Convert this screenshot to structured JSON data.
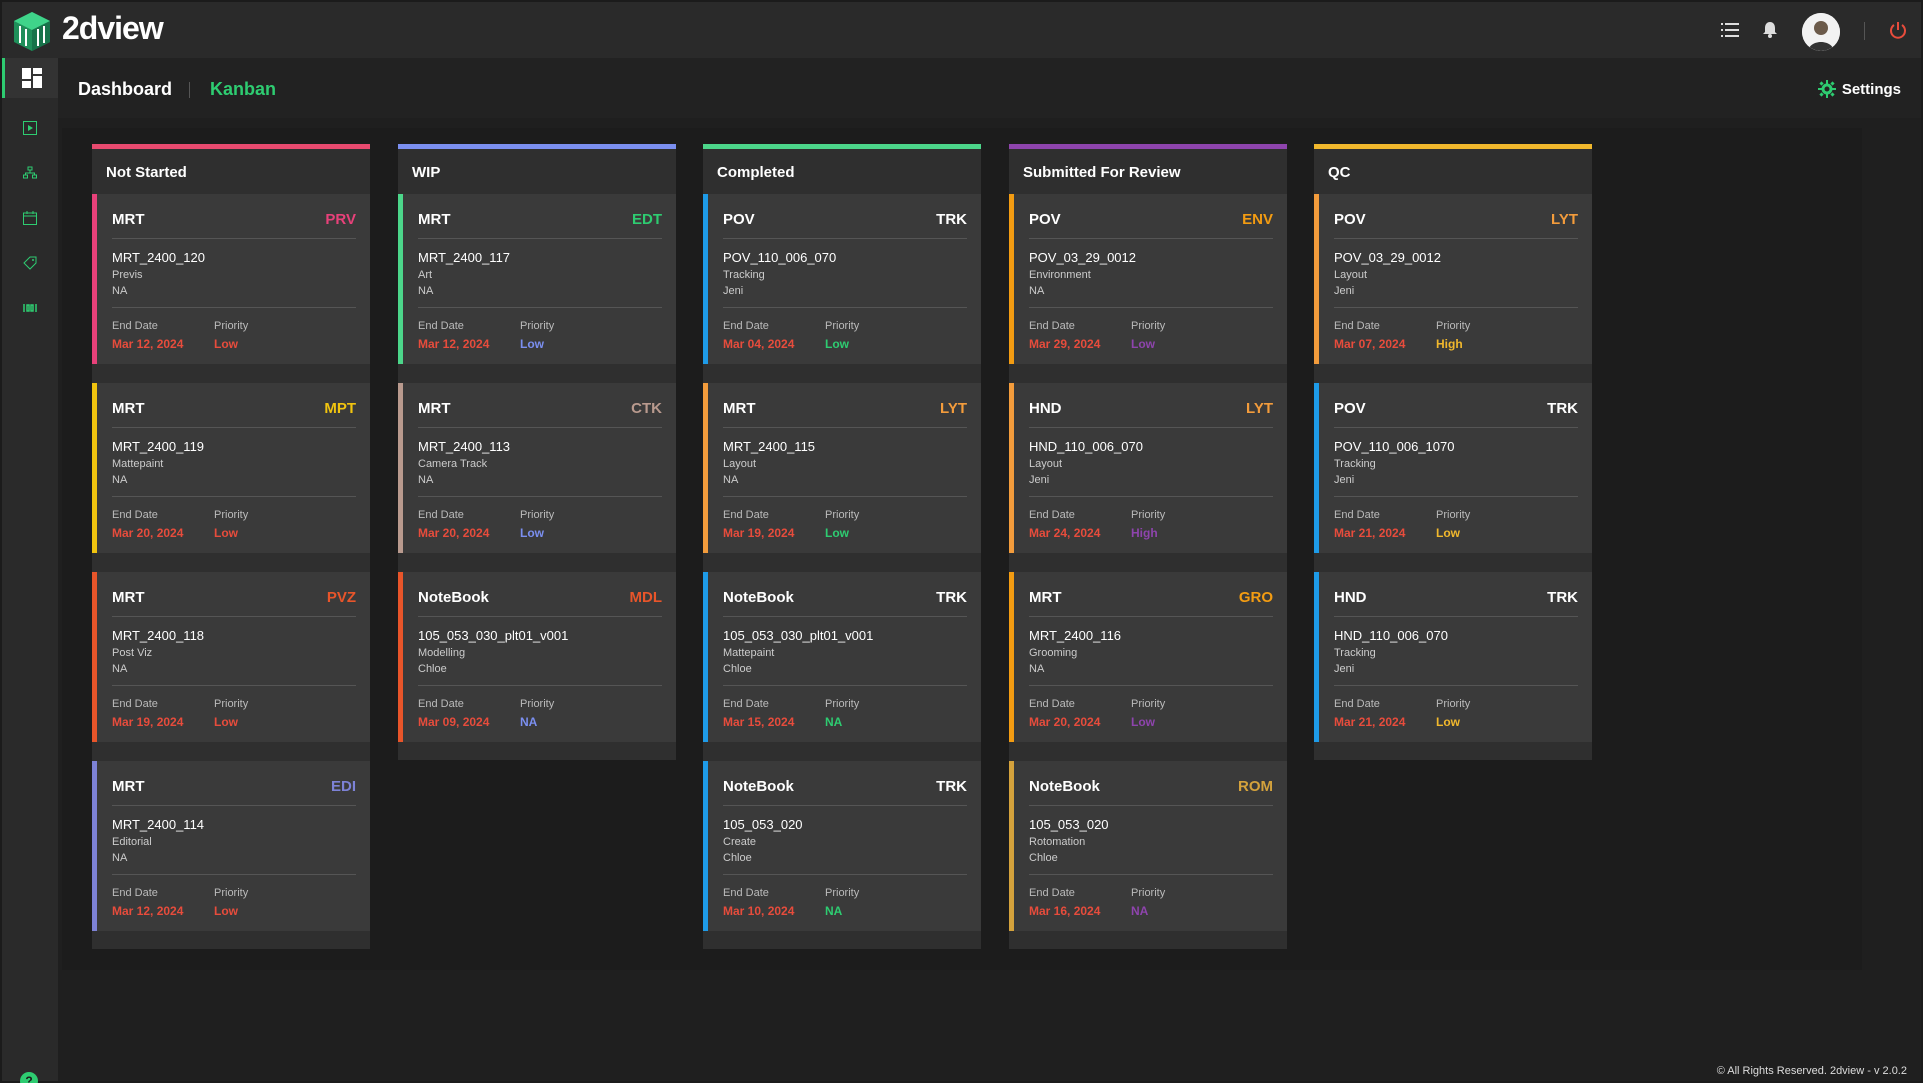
{
  "app": {
    "brand": "2dview"
  },
  "header": {
    "dashboard": "Dashboard",
    "kanban": "Kanban",
    "settings": "Settings"
  },
  "footer": "© All Rights Reserved. 2dview - v 2.0.2",
  "help_icon": "?",
  "labels": {
    "end_date": "End Date",
    "priority": "Priority"
  },
  "colors": {
    "accent": "#2ecc71",
    "date": "#e74c3c"
  },
  "columns": [
    {
      "title": "Not Started",
      "color": "#e84a6f",
      "cards": [
        {
          "project": "MRT",
          "code": "PRV",
          "code_color": "#e8417a",
          "border": "#e8417a",
          "name": "MRT_2400_120",
          "task": "Previs",
          "user": "NA",
          "end_date": "Mar 12, 2024",
          "priority": "Low",
          "priority_color": "#e74c3c"
        },
        {
          "project": "MRT",
          "code": "MPT",
          "code_color": "#f1c40f",
          "border": "#f1c40f",
          "name": "MRT_2400_119",
          "task": "Mattepaint",
          "user": "NA",
          "end_date": "Mar 20, 2024",
          "priority": "Low",
          "priority_color": "#e74c3c"
        },
        {
          "project": "MRT",
          "code": "PVZ",
          "code_color": "#e8552a",
          "border": "#e8552a",
          "name": "MRT_2400_118",
          "task": "Post Viz",
          "user": "NA",
          "end_date": "Mar 19, 2024",
          "priority": "Low",
          "priority_color": "#e74c3c"
        },
        {
          "project": "MRT",
          "code": "EDI",
          "code_color": "#7d82d6",
          "border": "#7d82d6",
          "name": "MRT_2400_114",
          "task": "Editorial",
          "user": "NA",
          "end_date": "Mar 12, 2024",
          "priority": "Low",
          "priority_color": "#e74c3c"
        }
      ]
    },
    {
      "title": "WIP",
      "color": "#7b8ff0",
      "cards": [
        {
          "project": "MRT",
          "code": "EDT",
          "code_color": "#2ecc71",
          "border": "#4cd68a",
          "name": "MRT_2400_117",
          "task": "Art",
          "user": "NA",
          "end_date": "Mar 12, 2024",
          "priority": "Low",
          "priority_color": "#7b8ff0"
        },
        {
          "project": "MRT",
          "code": "CTK",
          "code_color": "#b99a8e",
          "border": "#b99a8e",
          "name": "MRT_2400_113",
          "task": "Camera Track",
          "user": "NA",
          "end_date": "Mar 20, 2024",
          "priority": "Low",
          "priority_color": "#7b8ff0"
        },
        {
          "project": "NoteBook",
          "code": "MDL",
          "code_color": "#e8552a",
          "border": "#e8552a",
          "name": "105_053_030_plt01_v001",
          "task": "Modelling",
          "user": "Chloe",
          "end_date": "Mar 09, 2024",
          "priority": "NA",
          "priority_color": "#7b8ff0"
        }
      ]
    },
    {
      "title": "Completed",
      "color": "#4cd68a",
      "cards": [
        {
          "project": "POV",
          "code": "TRK",
          "code_color": "#ffffff",
          "border": "#1e9be8",
          "name": "POV_110_006_070",
          "task": "Tracking",
          "user": "Jeni",
          "end_date": "Mar 04, 2024",
          "priority": "Low",
          "priority_color": "#2ecc71"
        },
        {
          "project": "MRT",
          "code": "LYT",
          "code_color": "#f39c3c",
          "border": "#f39c3c",
          "name": "MRT_2400_115",
          "task": "Layout",
          "user": "NA",
          "end_date": "Mar 19, 2024",
          "priority": "Low",
          "priority_color": "#2ecc71"
        },
        {
          "project": "NoteBook",
          "code": "TRK",
          "code_color": "#ffffff",
          "border": "#1e9be8",
          "name": "105_053_030_plt01_v001",
          "task": "Mattepaint",
          "user": "Chloe",
          "end_date": "Mar 15, 2024",
          "priority": "NA",
          "priority_color": "#2ecc71"
        },
        {
          "project": "NoteBook",
          "code": "TRK",
          "code_color": "#ffffff",
          "border": "#1e9be8",
          "name": "105_053_020",
          "task": "Create",
          "user": "Chloe",
          "end_date": "Mar 10, 2024",
          "priority": "NA",
          "priority_color": "#2ecc71"
        }
      ]
    },
    {
      "title": "Submitted For Review",
      "color": "#8e44ad",
      "cards": [
        {
          "project": "POV",
          "code": "ENV",
          "code_color": "#f39c12",
          "border": "#f39c12",
          "name": "POV_03_29_0012",
          "task": "Environment",
          "user": "NA",
          "end_date": "Mar 29, 2024",
          "priority": "Low",
          "priority_color": "#8e44ad"
        },
        {
          "project": "HND",
          "code": "LYT",
          "code_color": "#f39c3c",
          "border": "#f39c3c",
          "name": "HND_110_006_070",
          "task": "Layout",
          "user": "Jeni",
          "end_date": "Mar 24, 2024",
          "priority": "High",
          "priority_color": "#8e44ad"
        },
        {
          "project": "MRT",
          "code": "GRO",
          "code_color": "#f39c12",
          "border": "#f39c12",
          "name": "MRT_2400_116",
          "task": "Grooming",
          "user": "NA",
          "end_date": "Mar 20, 2024",
          "priority": "Low",
          "priority_color": "#8e44ad"
        },
        {
          "project": "NoteBook",
          "code": "ROM",
          "code_color": "#d4a23c",
          "border": "#d4a23c",
          "name": "105_053_020",
          "task": "Rotomation",
          "user": "Chloe",
          "end_date": "Mar 16, 2024",
          "priority": "NA",
          "priority_color": "#8e44ad"
        }
      ]
    },
    {
      "title": "QC",
      "color": "#f1b82d",
      "cards": [
        {
          "project": "POV",
          "code": "LYT",
          "code_color": "#f39c3c",
          "border": "#f39c3c",
          "name": "POV_03_29_0012",
          "task": "Layout",
          "user": "Jeni",
          "end_date": "Mar 07, 2024",
          "priority": "High",
          "priority_color": "#f1b82d"
        },
        {
          "project": "POV",
          "code": "TRK",
          "code_color": "#ffffff",
          "border": "#1e9be8",
          "name": "POV_110_006_1070",
          "task": "Tracking",
          "user": "Jeni",
          "end_date": "Mar 21, 2024",
          "priority": "Low",
          "priority_color": "#f1b82d"
        },
        {
          "project": "HND",
          "code": "TRK",
          "code_color": "#ffffff",
          "border": "#1e9be8",
          "name": "HND_110_006_070",
          "task": "Tracking",
          "user": "Jeni",
          "end_date": "Mar 21, 2024",
          "priority": "Low",
          "priority_color": "#f1b82d"
        }
      ]
    }
  ]
}
